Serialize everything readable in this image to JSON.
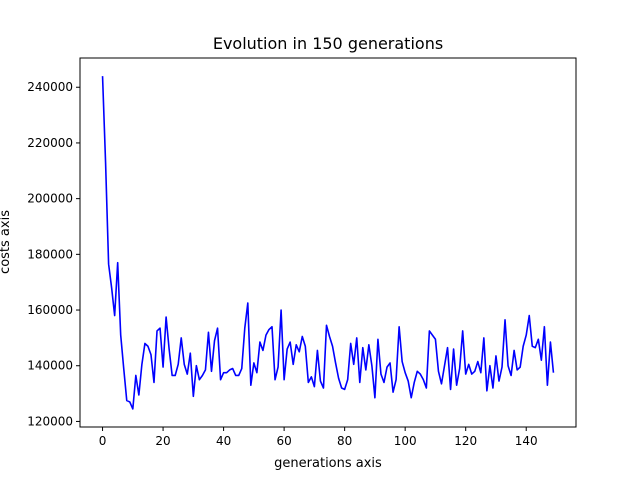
{
  "chart_data": {
    "type": "line",
    "title": "Evolution in 150 generations",
    "xlabel": "generations axis",
    "ylabel": "costs axis",
    "xlim": [
      -7.45,
      156.45
    ],
    "ylim": [
      118000,
      250500
    ],
    "xticks": [
      0,
      20,
      40,
      60,
      80,
      100,
      120,
      140
    ],
    "yticks": [
      120000,
      140000,
      160000,
      180000,
      200000,
      220000,
      240000
    ],
    "grid": false,
    "series": [
      {
        "color": "#0000ff",
        "x": [
          0,
          1,
          2,
          3,
          4,
          5,
          6,
          7,
          8,
          9,
          10,
          11,
          12,
          13,
          14,
          15,
          16,
          17,
          18,
          19,
          20,
          21,
          22,
          23,
          24,
          25,
          26,
          27,
          28,
          29,
          30,
          31,
          32,
          33,
          34,
          35,
          36,
          37,
          38,
          39,
          40,
          41,
          42,
          43,
          44,
          45,
          46,
          47,
          48,
          49,
          50,
          51,
          52,
          53,
          54,
          55,
          56,
          57,
          58,
          59,
          60,
          61,
          62,
          63,
          64,
          65,
          66,
          67,
          68,
          69,
          70,
          71,
          72,
          73,
          74,
          75,
          76,
          77,
          78,
          79,
          80,
          81,
          82,
          83,
          84,
          85,
          86,
          87,
          88,
          89,
          90,
          91,
          92,
          93,
          94,
          95,
          96,
          97,
          98,
          99,
          100,
          101,
          102,
          103,
          104,
          105,
          106,
          107,
          108,
          109,
          110,
          111,
          112,
          113,
          114,
          115,
          116,
          117,
          118,
          119,
          120,
          121,
          122,
          123,
          124,
          125,
          126,
          127,
          128,
          129,
          130,
          131,
          132,
          133,
          134,
          135,
          136,
          137,
          138,
          139,
          140,
          141,
          142,
          143,
          144,
          145,
          146,
          147,
          148,
          149
        ],
        "y": [
          244000,
          213000,
          176500,
          168000,
          158000,
          177000,
          151000,
          139000,
          127500,
          127000,
          124500,
          136500,
          129500,
          140500,
          148000,
          147000,
          144000,
          134000,
          152500,
          153500,
          139500,
          157500,
          146000,
          136500,
          136500,
          140500,
          150000,
          140500,
          137000,
          144500,
          129000,
          140000,
          135000,
          136500,
          138500,
          152000,
          138000,
          149000,
          153500,
          135000,
          137500,
          137500,
          138500,
          139000,
          136500,
          136500,
          139000,
          153500,
          162500,
          133000,
          141000,
          137500,
          148500,
          145500,
          151000,
          153000,
          154000,
          135000,
          139500,
          160000,
          135000,
          146000,
          148500,
          140500,
          147500,
          145000,
          150500,
          147000,
          134000,
          136000,
          132500,
          145500,
          134500,
          132000,
          154500,
          150500,
          147000,
          141000,
          135500,
          132000,
          131500,
          135000,
          148000,
          140500,
          150000,
          134000,
          146500,
          138500,
          147500,
          140000,
          128500,
          149500,
          137000,
          134000,
          139500,
          141000,
          130500,
          135000,
          154000,
          141500,
          137500,
          134500,
          128500,
          134000,
          138000,
          137000,
          135000,
          132000,
          152500,
          151000,
          149500,
          138000,
          133500,
          140000,
          146500,
          131500,
          146000,
          133000,
          139000,
          152500,
          137000,
          140500,
          137000,
          138000,
          141500,
          137500,
          150000,
          131000,
          140000,
          132000,
          143500,
          134500,
          139500,
          156500,
          140000,
          136500,
          145500,
          138500,
          139500,
          147000,
          151000,
          158000,
          147000,
          146500,
          149500,
          142000,
          154000,
          133000,
          148500,
          137500
        ]
      }
    ]
  }
}
